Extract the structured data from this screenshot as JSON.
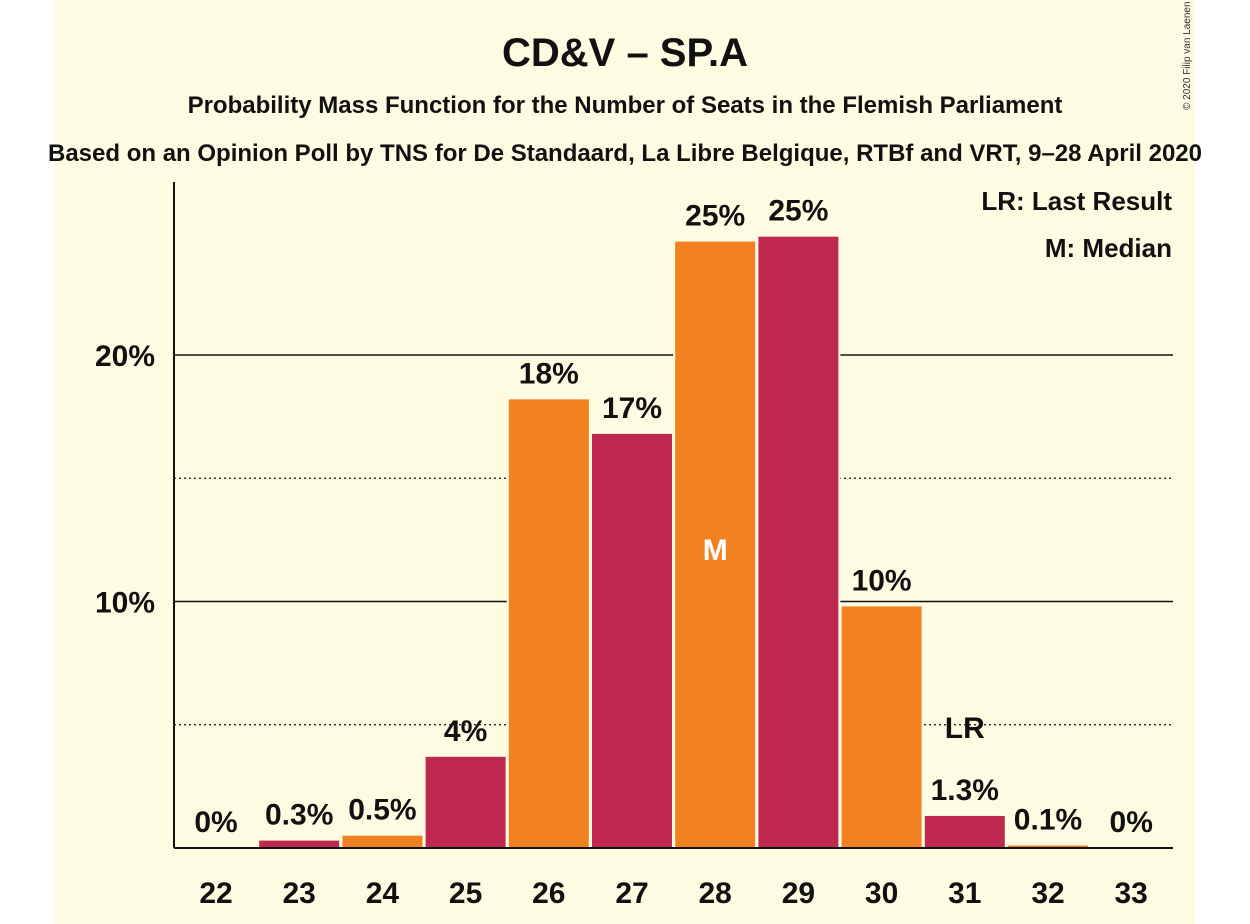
{
  "chart_data": {
    "type": "bar",
    "title": "CD&V – SP.A",
    "subtitle": "Probability Mass Function for the Number of Seats in the Flemish Parliament",
    "subtitle2": "Based on an Opinion Poll by TNS for De Standaard, La Libre Belgique, RTBf and VRT, 9–28 April 2020",
    "copyright": "© 2020 Filip van Laenen",
    "categories": [
      "22",
      "23",
      "24",
      "25",
      "26",
      "27",
      "28",
      "29",
      "30",
      "31",
      "32",
      "33"
    ],
    "values": [
      0,
      0.3,
      0.5,
      3.7,
      18.2,
      16.8,
      24.6,
      24.8,
      9.8,
      1.3,
      0.1,
      0
    ],
    "value_labels": [
      "0%",
      "0.3%",
      "0.5%",
      "4%",
      "18%",
      "17%",
      "25%",
      "25%",
      "10%",
      "1.3%",
      "0.1%",
      "0%"
    ],
    "yticks": [
      {
        "value": 10,
        "label": "10%"
      },
      {
        "value": 20,
        "label": "20%"
      }
    ],
    "minor_gridlines": [
      5,
      15
    ],
    "ylim": [
      0,
      27
    ],
    "median_category": "28",
    "median_marker": "M",
    "last_result_category": "31",
    "last_result_marker": "LR",
    "legend": [
      "LR: Last Result",
      "M: Median"
    ],
    "legend_position": "top-right",
    "colors": {
      "odd": "#c0294f",
      "even": "#f28121",
      "background": "#fdfbe1"
    }
  }
}
